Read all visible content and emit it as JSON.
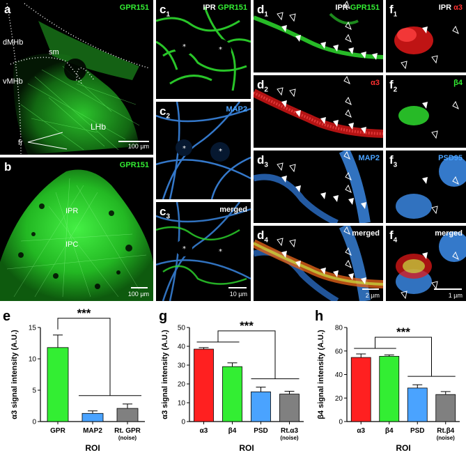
{
  "panels": {
    "a": {
      "label": "a",
      "stain": "GPR151",
      "regions": [
        "dMHb",
        "sm",
        "vMHb",
        "LHb",
        "fr"
      ],
      "scale": "100 µm"
    },
    "b": {
      "label": "b",
      "stain": "GPR151",
      "regions": [
        "IPR",
        "IPC"
      ],
      "scale": "100 µm"
    },
    "c1": {
      "label": "c",
      "sub": "1",
      "stain1": "IPR",
      "stain2": "GPR151"
    },
    "c2": {
      "label": "c",
      "sub": "2",
      "stain": "MAP2"
    },
    "c3": {
      "label": "c",
      "sub": "3",
      "stain": "merged",
      "scale": "10 µm"
    },
    "d1": {
      "label": "d",
      "sub": "1",
      "stain1": "IPR",
      "stain2": "GPR151"
    },
    "d2": {
      "label": "d",
      "sub": "2",
      "stain": "α3"
    },
    "d3": {
      "label": "d",
      "sub": "3",
      "stain": "MAP2"
    },
    "d4": {
      "label": "d",
      "sub": "4",
      "stain": "merged",
      "scale": "2 µm"
    },
    "f1": {
      "label": "f",
      "sub": "1",
      "stain1": "IPR",
      "stain2": "α3"
    },
    "f2": {
      "label": "f",
      "sub": "2",
      "stain": "β4"
    },
    "f3": {
      "label": "f",
      "sub": "3",
      "stain": "PSD95"
    },
    "f4": {
      "label": "f",
      "sub": "4",
      "stain": "merged",
      "scale": "1 µm"
    }
  },
  "colors": {
    "green": "#33ee33",
    "red": "#ff2020",
    "blue": "#4aa3ff",
    "grey": "#808080"
  },
  "chart_data": [
    {
      "panel": "e",
      "type": "bar",
      "categories": [
        "GPR",
        "MAP2",
        "Rt. GPR"
      ],
      "category_notes": [
        "",
        "",
        "(noise)"
      ],
      "values": [
        11.8,
        1.3,
        2.1
      ],
      "errors": [
        2.0,
        0.4,
        0.7
      ],
      "bar_colors": [
        "#33ee33",
        "#4aa3ff",
        "#808080"
      ],
      "ylabel": "α3 signal intensity (A.U.)",
      "xlabel": "ROI",
      "ylim": [
        0,
        15
      ],
      "yticks": [
        0,
        5,
        10,
        15
      ],
      "significance": "***",
      "grid": false
    },
    {
      "panel": "g",
      "type": "bar",
      "categories": [
        "α3",
        "β4",
        "PSD",
        "Rt.α3"
      ],
      "category_notes": [
        "",
        "",
        "",
        "(noise)"
      ],
      "values": [
        38.5,
        29.2,
        15.8,
        14.6
      ],
      "errors": [
        0.8,
        2.0,
        2.5,
        1.5
      ],
      "bar_colors": [
        "#ff2020",
        "#33ee33",
        "#4aa3ff",
        "#808080"
      ],
      "ylabel": "α3 signal intensity (A.U.)",
      "xlabel": "ROI",
      "ylim": [
        0,
        50
      ],
      "yticks": [
        0,
        10,
        20,
        30,
        40,
        50
      ],
      "significance": "***",
      "grid": false
    },
    {
      "panel": "h",
      "type": "bar",
      "categories": [
        "α3",
        "β4",
        "PSD",
        "Rt.β4"
      ],
      "category_notes": [
        "",
        "",
        "",
        "(noise)"
      ],
      "values": [
        54.5,
        55.5,
        28.5,
        23.0
      ],
      "errors": [
        3.0,
        1.2,
        2.8,
        2.5
      ],
      "bar_colors": [
        "#ff2020",
        "#33ee33",
        "#4aa3ff",
        "#808080"
      ],
      "ylabel": "β4 signal intensity (A.U.)",
      "xlabel": "ROI",
      "ylim": [
        0,
        80
      ],
      "yticks": [
        0,
        20,
        40,
        60,
        80
      ],
      "significance": "***",
      "grid": false
    }
  ]
}
